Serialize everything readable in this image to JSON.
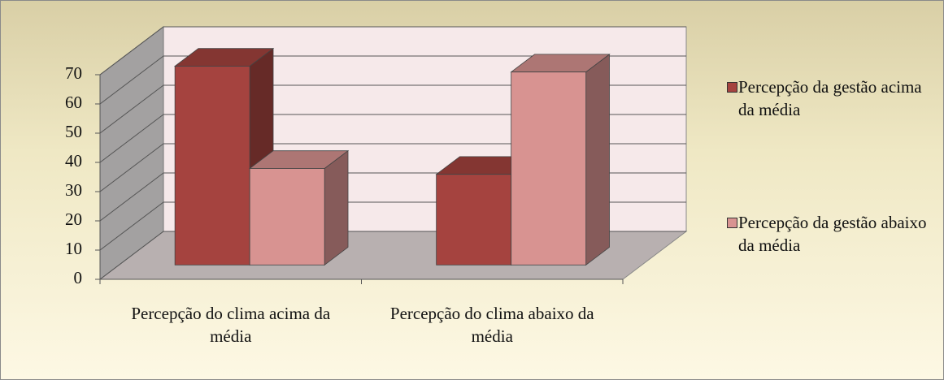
{
  "chart_data": {
    "type": "bar3d",
    "categories": [
      "Percepção do clima acima da média",
      "Percepção do clima abaixo da média"
    ],
    "series": [
      {
        "name": "Percepção da gestão acima da média",
        "color": "#a5433f",
        "values": [
          68,
          31
        ]
      },
      {
        "name": "Percepção da gestão abaixo da média",
        "color": "#d89391",
        "values": [
          33,
          66
        ]
      }
    ],
    "ylim": [
      0,
      70
    ],
    "yticks": [
      0,
      10,
      20,
      30,
      40,
      50,
      60,
      70
    ],
    "grid": true,
    "legend": "right"
  }
}
